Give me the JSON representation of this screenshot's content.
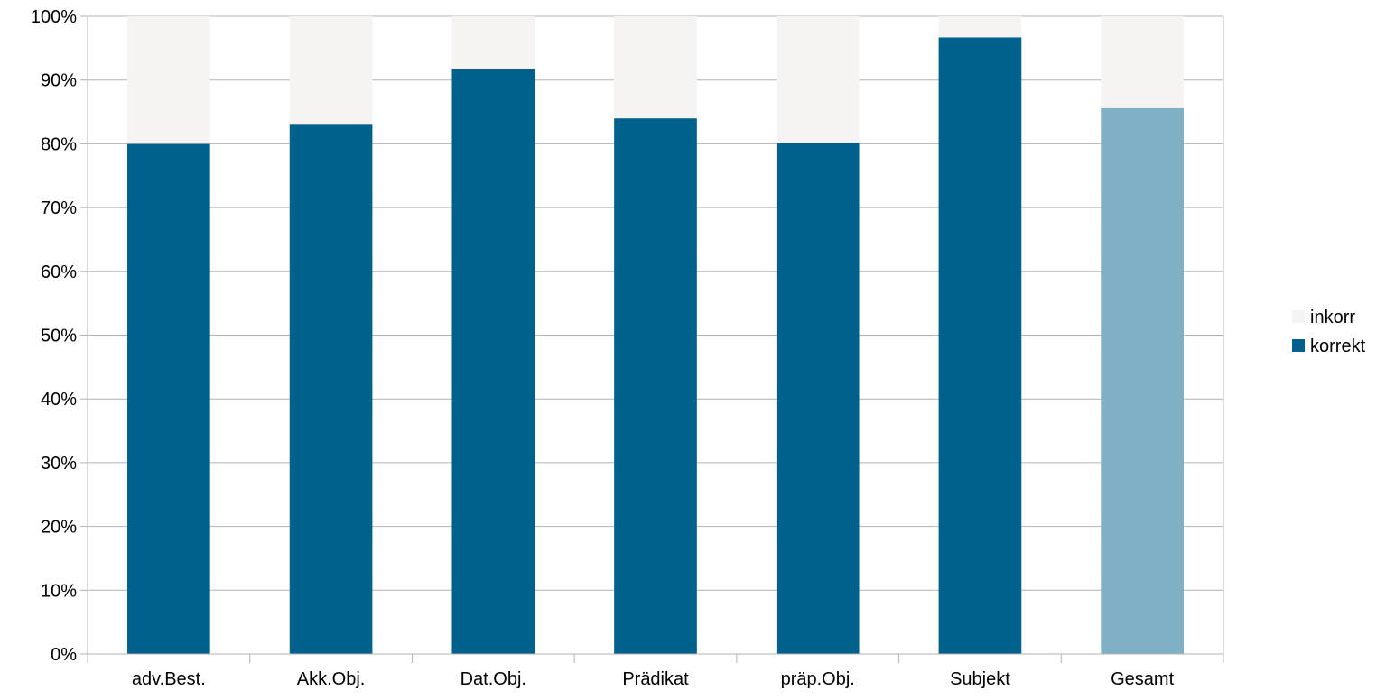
{
  "chart_data": {
    "type": "bar",
    "stacked": true,
    "percent_stacked": true,
    "categories": [
      "adv.Best.",
      "Akk.Obj.",
      "Dat.Obj.",
      "Prädikat",
      "präp.Obj.",
      "Subjekt",
      "Gesamt"
    ],
    "series": [
      {
        "name": "korrekt",
        "values": [
          80,
          83,
          91.8,
          84,
          80.2,
          96.7,
          85.6
        ],
        "color": "#00618d",
        "highlight_color": "#7fb0c6"
      },
      {
        "name": "inkorr",
        "values": [
          20,
          17,
          8.2,
          16,
          19.8,
          3.3,
          14.4
        ],
        "color": "#f5f4f2"
      }
    ],
    "highlight_category": "Gesamt",
    "y_ticks": [
      "0%",
      "10%",
      "20%",
      "30%",
      "40%",
      "50%",
      "60%",
      "70%",
      "80%",
      "90%",
      "100%"
    ],
    "ylim": [
      0,
      100
    ],
    "grid": true,
    "legend_position": "right",
    "legend": [
      {
        "label": "inkorr",
        "color": "#f5f4f2"
      },
      {
        "label": "korrekt",
        "color": "#00618d"
      }
    ],
    "title": "",
    "xlabel": "",
    "ylabel": ""
  }
}
